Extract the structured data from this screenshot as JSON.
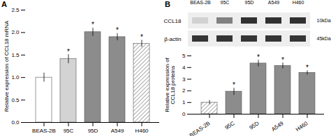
{
  "chart_data": [
    {
      "type": "bar",
      "title": "A",
      "categories": [
        "BEAS-2B",
        "95C",
        "95D",
        "A549",
        "H460"
      ],
      "values": [
        1.0,
        1.41,
        2.01,
        1.9,
        1.75
      ],
      "errors": [
        0.1,
        0.1,
        0.09,
        0.08,
        0.08
      ],
      "colors": [
        "#ffffff",
        "#d3d3d3",
        "#8c8c8c",
        "#8c8c8c",
        "hatch"
      ],
      "ylabel": "Relative expression of CCL18 mRNA",
      "ylim": [
        0,
        2.5
      ],
      "yticks": [
        {
          "value": 0,
          "label": "0.0"
        },
        0.5,
        {
          "value": 1,
          "label": "1.0"
        },
        1.5,
        {
          "value": 2,
          "label": "2.0"
        },
        2.5
      ],
      "annotations": [
        {
          "category": "95C",
          "text": "*"
        },
        {
          "category": "95D",
          "text": "*"
        },
        {
          "category": "A549",
          "text": "*"
        },
        {
          "category": "H460",
          "text": "*"
        }
      ]
    },
    {
      "type": "heatmap",
      "title": "B",
      "categories": [
        "BEAS-2B",
        "95C",
        "95D",
        "A549",
        "H460"
      ],
      "rows": [
        "CCL18",
        "β-actin"
      ],
      "cells": [
        [
          0.2,
          0.55,
          0.9,
          0.9,
          0.9
        ],
        [
          0.88,
          0.88,
          0.88,
          0.88,
          0.88
        ]
      ],
      "annotations": [
        {
          "row": "CCL18",
          "text": "10kDa"
        },
        {
          "row": "β-actin",
          "text": "45kDa"
        }
      ]
    },
    {
      "type": "bar",
      "categories": [
        "BEAS-2B",
        "95C",
        "95D",
        "A549",
        "H460"
      ],
      "values": [
        1.0,
        1.93,
        4.35,
        4.15,
        3.55
      ],
      "errors": [
        0.18,
        0.3,
        0.28,
        0.25,
        0.18
      ],
      "colors": [
        "hatch",
        "#8c8c8c",
        "#8c8c8c",
        "#8c8c8c",
        "#8c8c8c"
      ],
      "ylabel": "Relative expression of\nCCL18 proteins",
      "ylim": [
        0,
        5
      ],
      "yticks": [
        0,
        1,
        2,
        3,
        4,
        5
      ],
      "annotations": [
        {
          "category": "95C",
          "text": "*"
        },
        {
          "category": "95D",
          "text": "*"
        },
        {
          "category": "A549",
          "text": "*"
        },
        {
          "category": "H460",
          "text": "*"
        }
      ]
    }
  ]
}
